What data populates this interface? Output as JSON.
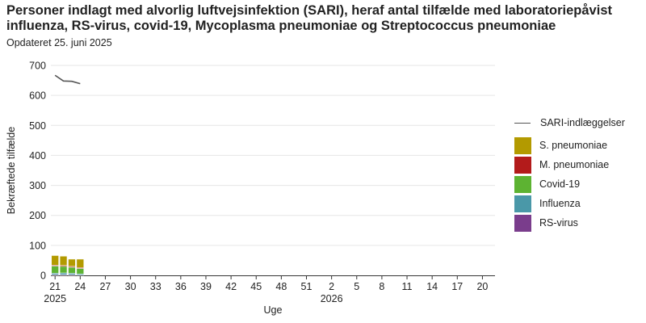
{
  "header": {
    "title": "Personer indlagt med alvorlig luftvejsinfektion (SARI), heraf antal tilfælde med laboratoriepåvist influenza, RS-virus, covid-19, Mycoplasma pneumoniae og Streptococcus pneumoniae",
    "subtitle": "Opdateret 25. juni 2025"
  },
  "chart_data": {
    "type": "bar",
    "stacked": true,
    "xlabel": "Uge",
    "ylabel": "Bekræftede tilfælde",
    "ylim": [
      0,
      700
    ],
    "yticks": [
      0,
      100,
      200,
      300,
      400,
      500,
      600,
      700
    ],
    "grid": true,
    "legend_position": "right",
    "weeks": [
      21,
      22,
      23,
      24
    ],
    "x_range": [
      "2025-W21",
      "2026-W21"
    ],
    "xtick_labels": [
      "21",
      "24",
      "27",
      "30",
      "33",
      "36",
      "39",
      "42",
      "45",
      "48",
      "51",
      "2",
      "5",
      "8",
      "11",
      "14",
      "17",
      "20"
    ],
    "year_labels": [
      "2025",
      "2026"
    ],
    "series": [
      {
        "name": "RS-virus",
        "color": "#7a3d8c",
        "values": [
          2,
          2,
          2,
          1
        ]
      },
      {
        "name": "Influenza",
        "color": "#4a98a8",
        "values": [
          5,
          6,
          5,
          4
        ]
      },
      {
        "name": "Covid-19",
        "color": "#5db332",
        "values": [
          24,
          22,
          20,
          18
        ]
      },
      {
        "name": "M. pneumoniae",
        "color": "#b31b1b",
        "values": [
          3,
          3,
          3,
          3
        ]
      },
      {
        "name": "S. pneumoniae",
        "color": "#b39a00",
        "values": [
          32,
          31,
          24,
          28
        ]
      }
    ],
    "line_series": {
      "name": "SARI-indlæggelser",
      "color": "#555555",
      "values": [
        667,
        648,
        647,
        639
      ]
    }
  }
}
